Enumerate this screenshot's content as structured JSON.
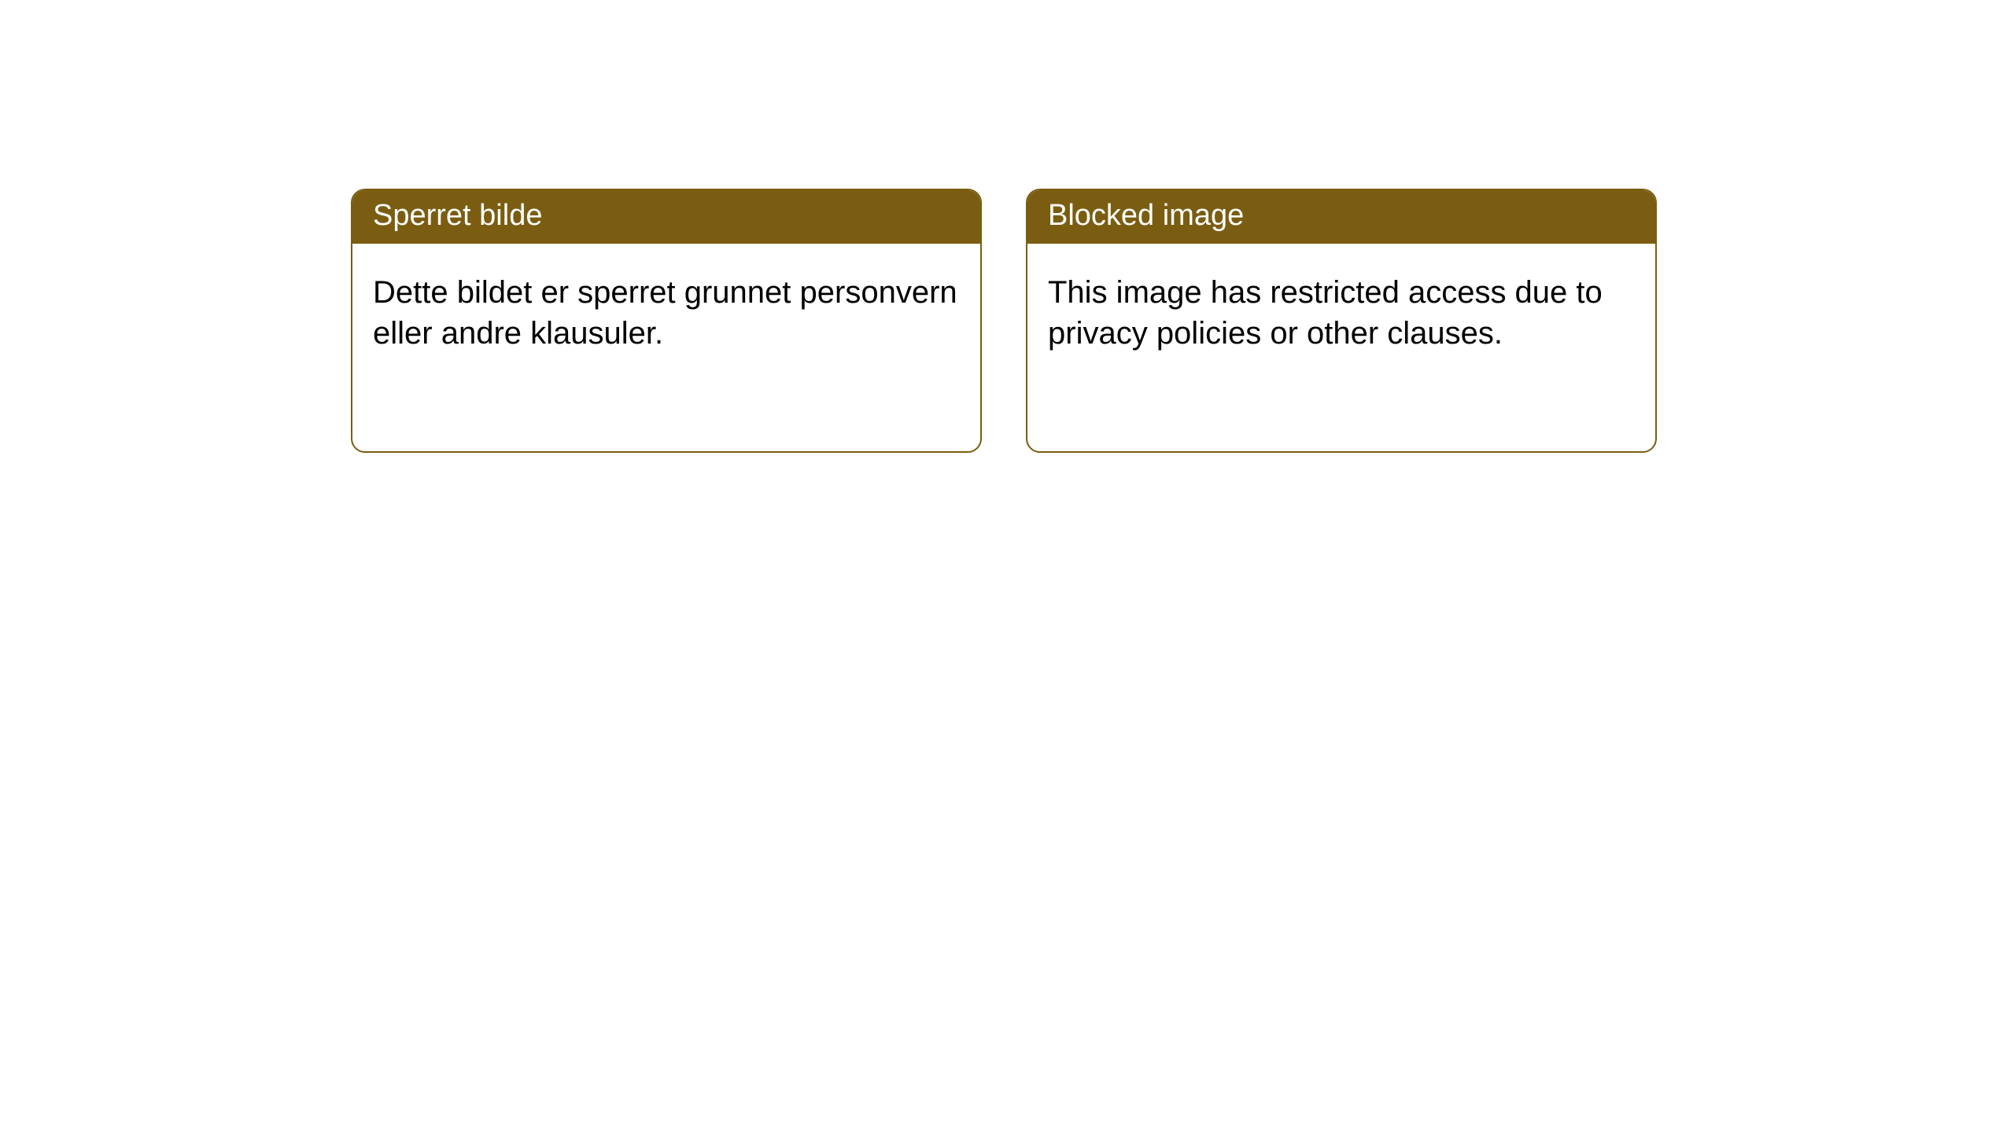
{
  "notices": [
    {
      "title": "Sperret bilde",
      "body": "Dette bildet er sperret grunnet personvern eller andre klausuler."
    },
    {
      "title": "Blocked image",
      "body": "This image has restricted access due to privacy policies or other clauses."
    }
  ],
  "style": {
    "header_bg": "#7a5d11",
    "header_text_color": "#ffffff",
    "border_color": "#7a5d11",
    "card_bg": "#ffffff",
    "body_text_color": "#000000",
    "page_bg": "#ffffff",
    "border_radius": 18,
    "header_fontsize": 38,
    "body_fontsize": 40
  }
}
